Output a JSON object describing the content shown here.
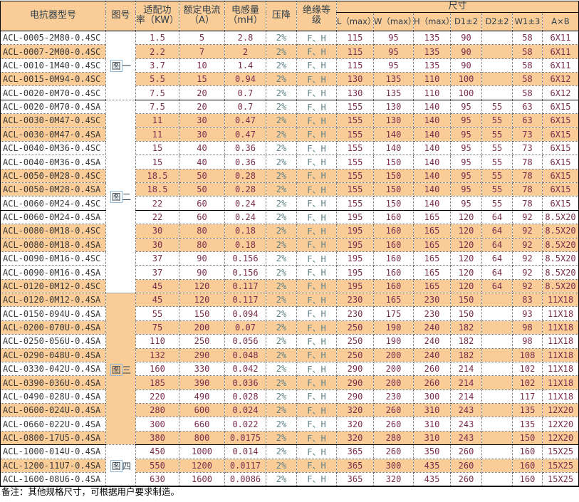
{
  "table": {
    "header": {
      "model": "电抗器型号",
      "figure": "图号",
      "power": "适配功\n率（KW）",
      "current": "额定电流\n（A）",
      "inductance": "电感量\n（mH）",
      "drop": "压降",
      "insulation": "绝缘等\n级",
      "dimensions": "尺寸",
      "dim_cols": [
        "L（max）",
        "W（max）",
        "H（max）",
        "D1±2",
        "D2±2",
        "W1±3",
        "A×B"
      ]
    },
    "figures": [
      {
        "label": "图一",
        "span": 5
      },
      {
        "label": "图二",
        "span": 14
      },
      {
        "label": "图三",
        "span": 11
      },
      {
        "label": "图四",
        "span": 3
      }
    ],
    "section_break_after": [
      5,
      13,
      30
    ],
    "rows": [
      {
        "model": "ACL-0005-2M80-0.4SC",
        "shaded": false,
        "values": [
          "1.5",
          "5",
          "2.8",
          "2%",
          "F、H",
          "115",
          "95",
          "135",
          "90",
          "",
          "58",
          "6X11"
        ]
      },
      {
        "model": "ACL-0007-2M00-0.4SC",
        "shaded": true,
        "values": [
          "2.2",
          "7",
          "2",
          "2%",
          "F、H",
          "115",
          "95",
          "135",
          "90",
          "",
          "58",
          "6X11"
        ]
      },
      {
        "model": "ACL-0010-1M40-0.4SC",
        "shaded": false,
        "values": [
          "3.7",
          "10",
          "1.4",
          "2%",
          "F、H",
          "115",
          "95",
          "135",
          "90",
          "",
          "58",
          "6X11"
        ]
      },
      {
        "model": "ACL-0015-0M94-0.4SC",
        "shaded": true,
        "values": [
          "5.5",
          "15",
          "0.94",
          "2%",
          "F、H",
          "130",
          "135",
          "110",
          "100",
          "",
          "58",
          "6X12"
        ]
      },
      {
        "model": "ACL-0020-0M70-0.4SC",
        "shaded": false,
        "values": [
          "7.5",
          "20",
          "0.7",
          "2%",
          "F、H",
          "130",
          "135",
          "110",
          "100",
          "",
          "58",
          "6X12"
        ]
      },
      {
        "model": "ACL-0020-0M70-0.4SA",
        "shaded": false,
        "values": [
          "7.5",
          "20",
          "0.7",
          "2%",
          "F、H",
          "155",
          "130",
          "140",
          "95",
          "55",
          "63",
          "6X15"
        ]
      },
      {
        "model": "ACL-0030-0M47-0.4SC",
        "shaded": true,
        "values": [
          "11",
          "30",
          "0.47",
          "2%",
          "F、H",
          "155",
          "130",
          "140",
          "95",
          "55",
          "63",
          "6X15"
        ]
      },
      {
        "model": "ACL-0030-0M47-0.4SA",
        "shaded": true,
        "values": [
          "11",
          "30",
          "0.47",
          "2%",
          "F、H",
          "155",
          "140",
          "140",
          "95",
          "55",
          "73",
          "6X15"
        ]
      },
      {
        "model": "ACL-0040-0M36-0.4SC",
        "shaded": false,
        "values": [
          "15",
          "40",
          "0.36",
          "2%",
          "F、H",
          "155",
          "140",
          "140",
          "95",
          "55",
          "73",
          "6X15"
        ]
      },
      {
        "model": "ACL-0040-0M36-0.4SA",
        "shaded": false,
        "values": [
          "15",
          "40",
          "0.36",
          "2%",
          "F、H",
          "155",
          "150",
          "140",
          "95",
          "55",
          "78",
          "6X15"
        ]
      },
      {
        "model": "ACL-0050-0M28-0.4SC",
        "shaded": true,
        "values": [
          "18.5",
          "50",
          "0.28",
          "2%",
          "F、H",
          "155",
          "150",
          "140",
          "95",
          "55",
          "78",
          "6X15"
        ]
      },
      {
        "model": "ACL-0050-0M28-0.4SA",
        "shaded": true,
        "values": [
          "18.5",
          "50",
          "0.28",
          "2%",
          "F、H",
          "155",
          "150",
          "140",
          "95",
          "55",
          "78",
          "6X15"
        ]
      },
      {
        "model": "ACL-0060-0M24-0.4SC",
        "shaded": false,
        "values": [
          "22",
          "60",
          "0.24",
          "2%",
          "F、H",
          "155",
          "150",
          "140",
          "95",
          "55",
          "78",
          "6X15"
        ]
      },
      {
        "model": "ACL-0060-0M24-0.4SA",
        "shaded": false,
        "values": [
          "22",
          "60",
          "0.24",
          "2%",
          "F、H",
          "195",
          "160",
          "165",
          "120",
          "64",
          "92",
          "8.5X20"
        ]
      },
      {
        "model": "ACL-0080-0M18-0.4SC",
        "shaded": true,
        "values": [
          "30",
          "80",
          "0.18",
          "2%",
          "F、H",
          "195",
          "160",
          "165",
          "120",
          "64",
          "92",
          "8.5X20"
        ]
      },
      {
        "model": "ACL-0080-0M18-0.4SA",
        "shaded": true,
        "values": [
          "30",
          "80",
          "0.18",
          "2%",
          "F、H",
          "195",
          "160",
          "165",
          "120",
          "64",
          "92",
          "8.5X20"
        ]
      },
      {
        "model": "ACL-0090-0M16-0.4SC",
        "shaded": false,
        "values": [
          "37",
          "90",
          "0.156",
          "2%",
          "F、H",
          "195",
          "160",
          "165",
          "120",
          "64",
          "92",
          "8.5X20"
        ]
      },
      {
        "model": "ACL-0090-0M16-0.4SA",
        "shaded": false,
        "values": [
          "37",
          "90",
          "0.156",
          "2%",
          "F、H",
          "195",
          "160",
          "165",
          "120",
          "64",
          "92",
          "8.5X20"
        ]
      },
      {
        "model": "ACL-0120-0M12-0.4SC",
        "shaded": true,
        "values": [
          "45",
          "120",
          "0.117",
          "2%",
          "F、H",
          "195",
          "160",
          "165",
          "120",
          "64",
          "92",
          "8.5X20"
        ]
      },
      {
        "model": "ACL-0120-0M12-0.4SA",
        "shaded": true,
        "values": [
          "45",
          "120",
          "0.117",
          "2%",
          "F、H",
          "230",
          "165",
          "230",
          "150",
          "",
          "83",
          "11X18"
        ]
      },
      {
        "model": "ACL-0150-094U-0.4SA",
        "shaded": false,
        "values": [
          "55",
          "150",
          "0.094",
          "2%",
          "F、H",
          "230",
          "175",
          "230",
          "150",
          "",
          "93",
          "11X18"
        ]
      },
      {
        "model": "ACL-0200-070U-0.4SA",
        "shaded": true,
        "values": [
          "75",
          "200",
          "0.07",
          "2%",
          "F、H",
          "250",
          "190",
          "240",
          "182",
          "",
          "98",
          "11X18"
        ]
      },
      {
        "model": "ACL-0250-056U-0.4SA",
        "shaded": false,
        "values": [
          "110",
          "250",
          "0.056",
          "2%",
          "F、H",
          "250",
          "190",
          "240",
          "182",
          "",
          "98",
          "11X18"
        ]
      },
      {
        "model": "ACL-0290-048U-0.4SA",
        "shaded": true,
        "values": [
          "132",
          "290",
          "0.048",
          "2%",
          "F、H",
          "250",
          "200",
          "240",
          "182",
          "",
          "108",
          "11X18"
        ]
      },
      {
        "model": "ACL-0330-042U-0.4SA",
        "shaded": false,
        "values": [
          "160",
          "330",
          "0.042",
          "2%",
          "F、H",
          "290",
          "200",
          "260",
          "214",
          "",
          "102",
          "11X18"
        ]
      },
      {
        "model": "ACL-0390-036U-0.4SA",
        "shaded": true,
        "values": [
          "185",
          "390",
          "0.036",
          "2%",
          "F、H",
          "290",
          "200",
          "260",
          "214",
          "",
          "102",
          "11X18"
        ]
      },
      {
        "model": "ACL-0490-028U-0.4SA",
        "shaded": false,
        "values": [
          "220",
          "490",
          "0.028",
          "2%",
          "F、H",
          "290",
          "230",
          "300",
          "214",
          "",
          "117",
          "11X18"
        ]
      },
      {
        "model": "ACL-0600-024U-0.4SA",
        "shaded": true,
        "values": [
          "280",
          "600",
          "0.024",
          "2%",
          "F、H",
          "320",
          "260",
          "310",
          "243",
          "",
          "135",
          "12X20"
        ]
      },
      {
        "model": "ACL-0660-022U-0.4SA",
        "shaded": false,
        "values": [
          "300",
          "660",
          "0.022",
          "2%",
          "F、H",
          "320",
          "260",
          "310",
          "243",
          "",
          "135",
          "12X20"
        ]
      },
      {
        "model": "ACL-0800-17U5-0.4SA",
        "shaded": true,
        "values": [
          "380",
          "800",
          "0.0175",
          "2%",
          "F、H",
          "320",
          "280",
          "310",
          "243",
          "",
          "150",
          "12X20"
        ]
      },
      {
        "model": "ACL-1000-014U-0.4SA",
        "shaded": false,
        "values": [
          "450",
          "1000",
          "0.014",
          "2%",
          "F、H",
          "365",
          "260",
          "350",
          "260",
          "",
          "160",
          "15X25"
        ]
      },
      {
        "model": "ACL-1200-11U7-0.4SA",
        "shaded": true,
        "values": [
          "550",
          "1200",
          "0.0117",
          "2%",
          "F、H",
          "365",
          "300",
          "435",
          "260",
          "",
          "160",
          "15X25"
        ]
      },
      {
        "model": "ACL-1600-08U6-0.4SA",
        "shaded": false,
        "values": [
          "630",
          "1600",
          "0.0086",
          "2%",
          "F、H",
          "365",
          "320",
          "435",
          "260",
          "",
          "160",
          "15X25"
        ]
      }
    ]
  },
  "note": "备注：其他规格尺寸，可根据用户要求制造。",
  "colors": {
    "band": "#FACC97",
    "number_text": "#7B2D4E",
    "muted_text": "#5E8288",
    "header_text": "#2E3E4A"
  }
}
